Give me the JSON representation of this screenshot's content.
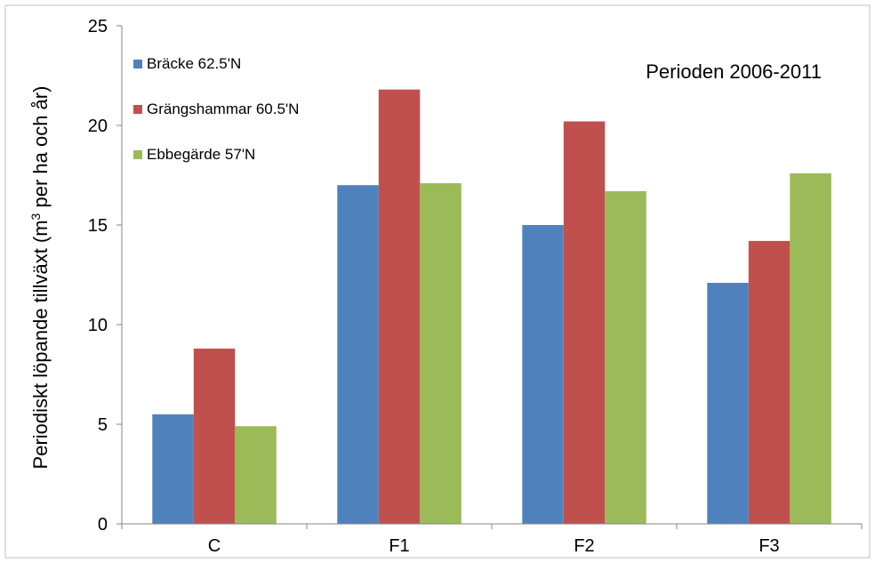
{
  "chart_data": {
    "type": "bar",
    "title": "",
    "annotation": "Perioden 2006-2011",
    "xlabel": "",
    "ylabel": {
      "before": "Periodiskt löpande tillväxt (m",
      "superscript": "3",
      "after": " per ha och år)"
    },
    "categories": [
      "C",
      "F1",
      "F2",
      "F3"
    ],
    "ylim": [
      0,
      25
    ],
    "yticks": [
      0,
      5,
      10,
      15,
      20,
      25
    ],
    "grid": false,
    "legend_position": "top-left",
    "series": [
      {
        "name": "Bräcke 62.5'N",
        "color": "#4F81BD",
        "values": [
          5.5,
          17.0,
          15.0,
          12.1
        ]
      },
      {
        "name": "Grängshammar 60.5'N",
        "color": "#C0504D",
        "values": [
          8.8,
          21.8,
          20.2,
          14.2
        ]
      },
      {
        "name": "Ebbegärde 57'N",
        "color": "#9BBB59",
        "values": [
          4.9,
          17.1,
          16.7,
          17.6
        ]
      }
    ]
  }
}
